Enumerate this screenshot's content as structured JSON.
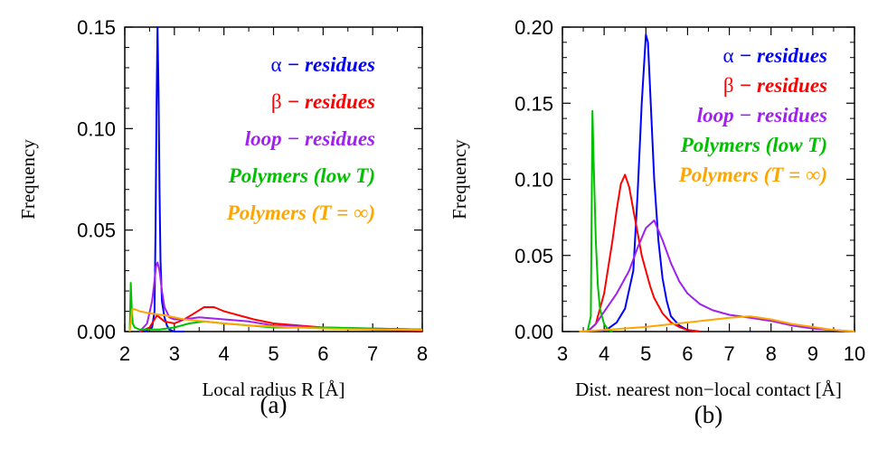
{
  "chart_data": [
    {
      "type": "line",
      "panel_label": "(a)",
      "xlabel": "Local radius R [Å]",
      "ylabel": "Frequency",
      "xlim": [
        2,
        8
      ],
      "ylim": [
        0,
        0.15
      ],
      "xticks": [
        "2",
        "3",
        "4",
        "5",
        "6",
        "7",
        "8"
      ],
      "yticks": [
        "0.00",
        "0.05",
        "0.10",
        "0.15"
      ],
      "legend_position": "top-right",
      "series": [
        {
          "name": "α − residues",
          "legend": {
            "sym": "α",
            "text": " − residues"
          },
          "color": "#0000ff",
          "x": [
            2.4,
            2.55,
            2.6,
            2.62,
            2.64,
            2.66,
            2.68,
            2.7,
            2.72,
            2.75,
            2.8,
            2.85,
            2.9,
            3.0,
            3.2
          ],
          "y": [
            0.0,
            0.002,
            0.01,
            0.05,
            0.11,
            0.15,
            0.12,
            0.07,
            0.035,
            0.015,
            0.007,
            0.003,
            0.001,
            0.0,
            0.0
          ]
        },
        {
          "name": "β − residues",
          "legend": {
            "sym": "β",
            "text": " − residues"
          },
          "color": "#ff0000",
          "x": [
            2.3,
            2.5,
            2.6,
            2.65,
            2.7,
            2.8,
            3.0,
            3.2,
            3.4,
            3.6,
            3.8,
            4.0,
            4.3,
            4.6,
            5.0,
            5.5,
            6.0,
            7.0,
            8.0
          ],
          "y": [
            0.0,
            0.002,
            0.006,
            0.008,
            0.007,
            0.005,
            0.004,
            0.006,
            0.009,
            0.012,
            0.012,
            0.01,
            0.008,
            0.006,
            0.004,
            0.003,
            0.002,
            0.001,
            0.0005
          ]
        },
        {
          "name": "loop − residues",
          "legend": {
            "text": "loop − residues"
          },
          "color": "#a020f0",
          "x": [
            2.3,
            2.45,
            2.55,
            2.6,
            2.63,
            2.66,
            2.7,
            2.75,
            2.8,
            2.9,
            3.0,
            3.2,
            3.5,
            4.0,
            4.5,
            5.0,
            6.0,
            8.0
          ],
          "y": [
            0.0,
            0.004,
            0.015,
            0.025,
            0.032,
            0.034,
            0.03,
            0.02,
            0.012,
            0.007,
            0.006,
            0.006,
            0.007,
            0.006,
            0.005,
            0.003,
            0.002,
            0.001
          ]
        },
        {
          "name": "Polymers (low T)",
          "legend": {
            "text": "Polymers (low T)"
          },
          "color": "#00c000",
          "x": [
            2.1,
            2.12,
            2.14,
            2.16,
            2.2,
            2.3,
            2.5,
            2.7,
            3.0,
            3.3,
            3.6,
            4.0,
            5.0,
            6.0,
            8.0
          ],
          "y": [
            0.0,
            0.024,
            0.012,
            0.004,
            0.002,
            0.001,
            0.001,
            0.001,
            0.002,
            0.004,
            0.005,
            0.004,
            0.002,
            0.002,
            0.001
          ]
        },
        {
          "name": "Polymers (T = ∞)",
          "legend": {
            "text": "Polymers (T = ∞)"
          },
          "color": "#ffa500",
          "x": [
            2.1,
            2.15,
            2.2,
            2.3,
            2.5,
            2.8,
            3.2,
            3.6,
            4.0,
            4.5,
            5.0,
            6.0,
            7.0,
            8.0
          ],
          "y": [
            0.0,
            0.011,
            0.011,
            0.01,
            0.009,
            0.008,
            0.006,
            0.005,
            0.004,
            0.003,
            0.0025,
            0.0015,
            0.001,
            0.0008
          ]
        }
      ]
    },
    {
      "type": "line",
      "panel_label": "(b)",
      "xlabel": "Dist. nearest non−local contact [Å]",
      "ylabel": "Frequency",
      "xlim": [
        3,
        10
      ],
      "ylim": [
        0,
        0.2
      ],
      "xticks": [
        "3",
        "4",
        "5",
        "6",
        "7",
        "8",
        "9",
        "10"
      ],
      "yticks": [
        "0.00",
        "0.05",
        "0.10",
        "0.15",
        "0.20"
      ],
      "legend_position": "top-right",
      "series": [
        {
          "name": "α − residues",
          "legend": {
            "sym": "α",
            "text": " − residues"
          },
          "color": "#0000ff",
          "x": [
            3.9,
            4.1,
            4.3,
            4.5,
            4.7,
            4.8,
            4.9,
            5.0,
            5.05,
            5.1,
            5.2,
            5.3,
            5.4,
            5.5,
            5.6,
            5.8,
            6.0,
            6.3
          ],
          "y": [
            0.0,
            0.002,
            0.006,
            0.015,
            0.04,
            0.09,
            0.15,
            0.195,
            0.19,
            0.16,
            0.1,
            0.06,
            0.035,
            0.02,
            0.01,
            0.004,
            0.001,
            0.0
          ]
        },
        {
          "name": "β − residues",
          "legend": {
            "sym": "β",
            "text": " − residues"
          },
          "color": "#ff0000",
          "x": [
            3.6,
            3.8,
            4.0,
            4.2,
            4.3,
            4.4,
            4.5,
            4.6,
            4.7,
            4.8,
            4.9,
            5.0,
            5.1,
            5.2,
            5.4,
            5.6,
            5.8,
            6.0,
            6.3
          ],
          "y": [
            0.0,
            0.005,
            0.025,
            0.06,
            0.08,
            0.097,
            0.103,
            0.095,
            0.08,
            0.065,
            0.05,
            0.04,
            0.03,
            0.022,
            0.012,
            0.006,
            0.003,
            0.001,
            0.0
          ]
        },
        {
          "name": "loop − residues",
          "legend": {
            "text": "loop − residues"
          },
          "color": "#a020f0",
          "x": [
            3.6,
            3.8,
            4.0,
            4.3,
            4.6,
            4.8,
            5.0,
            5.2,
            5.4,
            5.6,
            5.8,
            6.0,
            6.3,
            6.6,
            7.0,
            7.5,
            8.0,
            8.5,
            9.0,
            9.5,
            10.0
          ],
          "y": [
            0.0,
            0.005,
            0.013,
            0.025,
            0.04,
            0.055,
            0.068,
            0.073,
            0.06,
            0.045,
            0.033,
            0.025,
            0.018,
            0.014,
            0.011,
            0.009,
            0.007,
            0.004,
            0.002,
            0.001,
            0.0
          ]
        },
        {
          "name": "Polymers (low T)",
          "legend": {
            "text": "Polymers (low T)"
          },
          "color": "#00c000",
          "x": [
            3.6,
            3.68,
            3.72,
            3.75,
            3.8,
            3.85,
            3.9,
            4.0,
            4.1,
            4.2
          ],
          "y": [
            0.0,
            0.01,
            0.145,
            0.11,
            0.06,
            0.03,
            0.015,
            0.005,
            0.001,
            0.0
          ]
        },
        {
          "name": "Polymers (T = ∞)",
          "legend": {
            "text": "Polymers (T = ∞)"
          },
          "color": "#ffa500",
          "x": [
            3.4,
            4.0,
            5.0,
            6.0,
            7.0,
            7.5,
            8.0,
            8.5,
            9.0,
            9.5,
            10.0
          ],
          "y": [
            0.0,
            0.001,
            0.003,
            0.006,
            0.009,
            0.01,
            0.008,
            0.005,
            0.003,
            0.001,
            0.0
          ]
        }
      ]
    }
  ]
}
